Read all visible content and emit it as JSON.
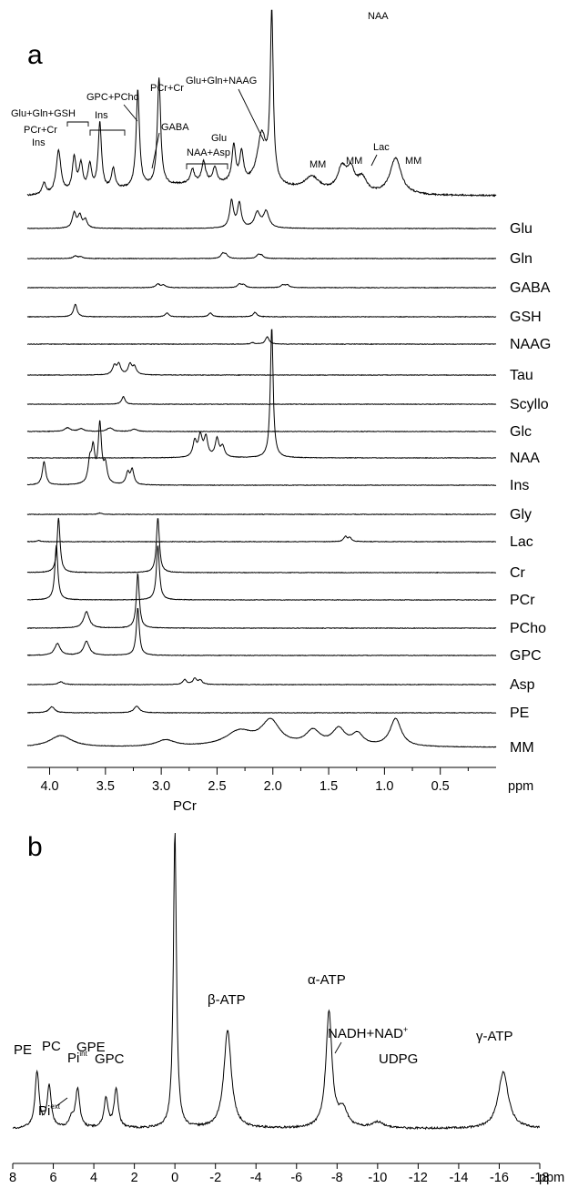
{
  "chart_data": [
    {
      "type": "line",
      "panel_label": "a",
      "xlabel": "ppm",
      "xlim": [
        4.2,
        0.0
      ],
      "x_reversed": true,
      "ticks": [
        4.0,
        3.5,
        3.0,
        2.5,
        2.0,
        1.5,
        1.0,
        0.5
      ],
      "tick_labels": [
        "4.0",
        "3.5",
        "3.0",
        "2.5",
        "2.0",
        "1.5",
        "1.0",
        "0.5"
      ],
      "measured_spectrum": {
        "peaks": [
          {
            "ppm": 4.05,
            "height": 0.07,
            "width": 0.02
          },
          {
            "ppm": 3.92,
            "height": 0.26,
            "width": 0.025
          },
          {
            "ppm": 3.78,
            "height": 0.2,
            "width": 0.02
          },
          {
            "ppm": 3.72,
            "height": 0.16,
            "width": 0.02
          },
          {
            "ppm": 3.64,
            "height": 0.15,
            "width": 0.02
          },
          {
            "ppm": 3.55,
            "height": 0.4,
            "width": 0.018
          },
          {
            "ppm": 3.43,
            "height": 0.12,
            "width": 0.02
          },
          {
            "ppm": 3.21,
            "height": 0.58,
            "width": 0.018
          },
          {
            "ppm": 3.02,
            "height": 0.64,
            "width": 0.018
          },
          {
            "ppm": 2.72,
            "height": 0.08,
            "width": 0.02
          },
          {
            "ppm": 2.62,
            "height": 0.12,
            "width": 0.02
          },
          {
            "ppm": 2.52,
            "height": 0.09,
            "width": 0.02
          },
          {
            "ppm": 2.35,
            "height": 0.22,
            "width": 0.02
          },
          {
            "ppm": 2.28,
            "height": 0.18,
            "width": 0.02
          },
          {
            "ppm": 2.1,
            "height": 0.3,
            "width": 0.05
          },
          {
            "ppm": 2.01,
            "height": 1.0,
            "width": 0.016
          },
          {
            "ppm": 1.65,
            "height": 0.08,
            "width": 0.08
          },
          {
            "ppm": 1.38,
            "height": 0.14,
            "width": 0.05
          },
          {
            "ppm": 1.3,
            "height": 0.12,
            "width": 0.04
          },
          {
            "ppm": 1.2,
            "height": 0.09,
            "width": 0.05
          },
          {
            "ppm": 0.9,
            "height": 0.22,
            "width": 0.06
          }
        ],
        "annotations": [
          "NAA",
          "Glu+Gln+NAAG",
          "PCr+Cr",
          "GPC+PCho",
          "Glu+Gln+GSH",
          "Ins",
          "PCr+Cr",
          "GABA",
          "Ins",
          "NAA+Asp",
          "Glu",
          "MM",
          "MM",
          "Lac",
          "MM"
        ]
      },
      "series": [
        {
          "name": "Glu",
          "peaks": [
            {
              "ppm": 3.78,
              "height": 0.55,
              "width": 0.02
            },
            {
              "ppm": 3.73,
              "height": 0.45,
              "width": 0.02
            },
            {
              "ppm": 3.68,
              "height": 0.3,
              "width": 0.02
            },
            {
              "ppm": 2.37,
              "height": 1.0,
              "width": 0.02
            },
            {
              "ppm": 2.3,
              "height": 0.9,
              "width": 0.02
            },
            {
              "ppm": 2.14,
              "height": 0.55,
              "width": 0.03
            },
            {
              "ppm": 2.06,
              "height": 0.6,
              "width": 0.03
            }
          ]
        },
        {
          "name": "Gln",
          "peaks": [
            {
              "ppm": 3.77,
              "height": 0.3,
              "width": 0.02
            },
            {
              "ppm": 3.72,
              "height": 0.2,
              "width": 0.02
            },
            {
              "ppm": 2.45,
              "height": 0.5,
              "width": 0.02
            },
            {
              "ppm": 2.42,
              "height": 0.4,
              "width": 0.02
            },
            {
              "ppm": 2.13,
              "height": 0.4,
              "width": 0.02
            },
            {
              "ppm": 2.1,
              "height": 0.3,
              "width": 0.02
            }
          ]
        },
        {
          "name": "GABA",
          "peaks": [
            {
              "ppm": 3.03,
              "height": 0.4,
              "width": 0.02
            },
            {
              "ppm": 2.98,
              "height": 0.3,
              "width": 0.02
            },
            {
              "ppm": 2.3,
              "height": 0.4,
              "width": 0.02
            },
            {
              "ppm": 2.26,
              "height": 0.3,
              "width": 0.02
            },
            {
              "ppm": 1.91,
              "height": 0.3,
              "width": 0.02
            },
            {
              "ppm": 1.87,
              "height": 0.3,
              "width": 0.02
            }
          ]
        },
        {
          "name": "GSH",
          "peaks": [
            {
              "ppm": 3.77,
              "height": 1.0,
              "width": 0.018
            },
            {
              "ppm": 2.95,
              "height": 0.3,
              "width": 0.02
            },
            {
              "ppm": 2.56,
              "height": 0.3,
              "width": 0.02
            },
            {
              "ppm": 2.16,
              "height": 0.35,
              "width": 0.02
            }
          ]
        },
        {
          "name": "NAAG",
          "peaks": [
            {
              "ppm": 2.05,
              "height": 0.8,
              "width": 0.02
            },
            {
              "ppm": 2.18,
              "height": 0.15,
              "width": 0.02
            }
          ]
        },
        {
          "name": "Tau",
          "peaks": [
            {
              "ppm": 3.42,
              "height": 0.7,
              "width": 0.02
            },
            {
              "ppm": 3.38,
              "height": 0.8,
              "width": 0.02
            },
            {
              "ppm": 3.28,
              "height": 0.8,
              "width": 0.02
            },
            {
              "ppm": 3.24,
              "height": 0.6,
              "width": 0.02
            }
          ]
        },
        {
          "name": "Scyllo",
          "peaks": [
            {
              "ppm": 3.34,
              "height": 0.6,
              "width": 0.018
            }
          ]
        },
        {
          "name": "Glc",
          "peaks": [
            {
              "ppm": 3.84,
              "height": 0.4,
              "width": 0.03
            },
            {
              "ppm": 3.72,
              "height": 0.3,
              "width": 0.03
            },
            {
              "ppm": 3.46,
              "height": 0.4,
              "width": 0.03
            },
            {
              "ppm": 3.24,
              "height": 0.25,
              "width": 0.03
            }
          ]
        },
        {
          "name": "NAA",
          "peaks": [
            {
              "ppm": 2.01,
              "height": 1.0,
              "width": 0.015
            },
            {
              "ppm": 2.7,
              "height": 0.12,
              "width": 0.02
            },
            {
              "ppm": 2.65,
              "height": 0.16,
              "width": 0.02
            },
            {
              "ppm": 2.6,
              "height": 0.15,
              "width": 0.02
            },
            {
              "ppm": 2.5,
              "height": 0.14,
              "width": 0.02
            },
            {
              "ppm": 2.45,
              "height": 0.08,
              "width": 0.02
            }
          ]
        },
        {
          "name": "Ins",
          "peaks": [
            {
              "ppm": 4.05,
              "height": 0.4,
              "width": 0.018
            },
            {
              "ppm": 3.64,
              "height": 0.35,
              "width": 0.018
            },
            {
              "ppm": 3.61,
              "height": 0.55,
              "width": 0.018
            },
            {
              "ppm": 3.55,
              "height": 1.0,
              "width": 0.018
            },
            {
              "ppm": 3.5,
              "height": 0.3,
              "width": 0.018
            },
            {
              "ppm": 3.3,
              "height": 0.2,
              "width": 0.018
            },
            {
              "ppm": 3.26,
              "height": 0.25,
              "width": 0.018
            }
          ]
        },
        {
          "name": "Gly",
          "peaks": [
            {
              "ppm": 3.55,
              "height": 0.15,
              "width": 0.018
            }
          ]
        },
        {
          "name": "Lac",
          "peaks": [
            {
              "ppm": 4.1,
              "height": 0.1,
              "width": 0.02
            },
            {
              "ppm": 1.35,
              "height": 0.45,
              "width": 0.018
            },
            {
              "ppm": 1.31,
              "height": 0.35,
              "width": 0.018
            }
          ]
        },
        {
          "name": "Cr",
          "peaks": [
            {
              "ppm": 3.92,
              "height": 1.0,
              "width": 0.016
            },
            {
              "ppm": 3.03,
              "height": 1.0,
              "width": 0.016
            }
          ]
        },
        {
          "name": "PCr",
          "peaks": [
            {
              "ppm": 3.94,
              "height": 1.0,
              "width": 0.016
            },
            {
              "ppm": 3.03,
              "height": 1.0,
              "width": 0.016
            }
          ]
        },
        {
          "name": "PCho",
          "peaks": [
            {
              "ppm": 3.67,
              "height": 0.3,
              "width": 0.03
            },
            {
              "ppm": 3.21,
              "height": 1.0,
              "width": 0.016
            }
          ]
        },
        {
          "name": "GPC",
          "peaks": [
            {
              "ppm": 3.93,
              "height": 0.25,
              "width": 0.03
            },
            {
              "ppm": 3.67,
              "height": 0.3,
              "width": 0.03
            },
            {
              "ppm": 3.21,
              "height": 1.0,
              "width": 0.016
            }
          ]
        },
        {
          "name": "Asp",
          "peaks": [
            {
              "ppm": 3.9,
              "height": 0.25,
              "width": 0.03
            },
            {
              "ppm": 2.79,
              "height": 0.45,
              "width": 0.02
            },
            {
              "ppm": 2.7,
              "height": 0.55,
              "width": 0.02
            },
            {
              "ppm": 2.65,
              "height": 0.4,
              "width": 0.02
            }
          ]
        },
        {
          "name": "PE",
          "peaks": [
            {
              "ppm": 3.98,
              "height": 0.5,
              "width": 0.03
            },
            {
              "ppm": 3.22,
              "height": 0.55,
              "width": 0.03
            }
          ]
        },
        {
          "name": "MM",
          "peaks": [
            {
              "ppm": 3.9,
              "height": 0.35,
              "width": 0.12
            },
            {
              "ppm": 2.96,
              "height": 0.2,
              "width": 0.1
            },
            {
              "ppm": 2.3,
              "height": 0.45,
              "width": 0.15
            },
            {
              "ppm": 2.02,
              "height": 0.75,
              "width": 0.1
            },
            {
              "ppm": 1.64,
              "height": 0.45,
              "width": 0.08
            },
            {
              "ppm": 1.41,
              "height": 0.5,
              "width": 0.07
            },
            {
              "ppm": 1.24,
              "height": 0.35,
              "width": 0.06
            },
            {
              "ppm": 0.9,
              "height": 0.85,
              "width": 0.06
            }
          ]
        }
      ]
    },
    {
      "type": "line",
      "panel_label": "b",
      "xlabel": "ppm",
      "xlim": [
        8,
        -18
      ],
      "x_reversed": true,
      "ticks": [
        8,
        6,
        4,
        2,
        0,
        -2,
        -4,
        -6,
        -8,
        -10,
        -12,
        -14,
        -16,
        -18
      ],
      "tick_labels": [
        "8",
        "6",
        "4",
        "2",
        "0",
        "-2",
        "-4",
        "-6",
        "-8",
        "-10",
        "-12",
        "-14",
        "-16",
        "-18"
      ],
      "peaks": [
        {
          "label": "PE",
          "ppm": 6.8,
          "height": 0.19,
          "width": 0.12
        },
        {
          "label": "PC",
          "ppm": 6.2,
          "height": 0.14,
          "width": 0.12
        },
        {
          "label": "Pi_ext",
          "ppm": 5.1,
          "height": 0.03,
          "width": 0.15
        },
        {
          "label": "Pi_int",
          "ppm": 4.8,
          "height": 0.13,
          "width": 0.12
        },
        {
          "label": "GPE",
          "ppm": 3.4,
          "height": 0.1,
          "width": 0.12
        },
        {
          "label": "GPC",
          "ppm": 2.9,
          "height": 0.13,
          "width": 0.12
        },
        {
          "label": "PCr",
          "ppm": 0.0,
          "height": 1.0,
          "width": 0.09
        },
        {
          "label": "β-ATP",
          "ppm": -2.6,
          "height": 0.33,
          "width": 0.22
        },
        {
          "label": "α-ATP",
          "ppm": -7.6,
          "height": 0.39,
          "width": 0.18
        },
        {
          "label": "NADH+NAD+",
          "ppm": -8.3,
          "height": 0.06,
          "width": 0.25
        },
        {
          "label": "UDPG",
          "ppm": -10.0,
          "height": 0.02,
          "width": 0.35
        },
        {
          "label": "γ-ATP",
          "ppm": -16.2,
          "height": 0.19,
          "width": 0.3
        }
      ]
    }
  ],
  "text": {
    "panel_a": "a",
    "panel_b": "b",
    "ppm_a": "ppm",
    "ppm_b": "ppm",
    "a_ann": {
      "naa_top": "NAA",
      "gluglnnaag": "Glu+Gln+NAAG",
      "pcrcr_mid": "PCr+Cr",
      "gpcpcho": "GPC+PCho",
      "gluglngsh": "Glu+Gln+GSH",
      "ins_bracket": "Ins",
      "pcrcr_left": "PCr+Cr",
      "gaba": "GABA",
      "ins_left": "Ins",
      "naaasp": "NAA+Asp",
      "glu": "Glu",
      "mm1": "MM",
      "mm2": "MM",
      "lac": "Lac",
      "mm3": "MM"
    },
    "b_ann": {
      "pcr": "PCr",
      "pe": "PE",
      "pc": "PC",
      "pi_int_base": "Pi",
      "pi_int_sup": "int",
      "gpe": "GPE",
      "gpc": "GPC",
      "pi_ext_base": "Pi",
      "pi_ext_sup": "ext",
      "beta_atp": "β-ATP",
      "alpha_atp": "α-ATP",
      "nadh_base": "NADH+NAD",
      "nadh_sup": "+",
      "udpg": "UDPG",
      "gamma_atp": "γ-ATP"
    }
  }
}
